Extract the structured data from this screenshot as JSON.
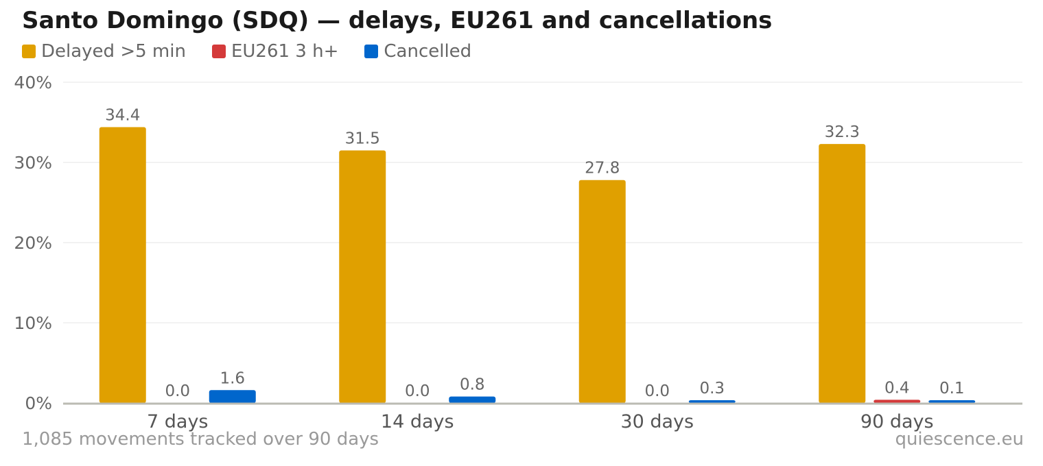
{
  "chart_data": {
    "type": "bar",
    "title": "Santo Domingo (SDQ) — delays, EU261 and cancellations",
    "categories": [
      "7 days",
      "14 days",
      "30 days",
      "90 days"
    ],
    "series": [
      {
        "name": "Delayed >5 min",
        "color": "#E0A000",
        "values": [
          34.4,
          31.5,
          27.8,
          32.3
        ],
        "labels": [
          "34.4",
          "31.5",
          "27.8",
          "32.3"
        ]
      },
      {
        "name": "EU261 3 h+",
        "color": "#D43A3A",
        "values": [
          0.0,
          0.0,
          0.0,
          0.4
        ],
        "labels": [
          "0.0",
          "0.0",
          "0.0",
          "0.4"
        ]
      },
      {
        "name": "Cancelled",
        "color": "#0066CC",
        "values": [
          1.6,
          0.8,
          0.3,
          0.1
        ],
        "labels": [
          "1.6",
          "0.8",
          "0.3",
          "0.1"
        ]
      }
    ],
    "ylim": [
      0,
      40
    ],
    "yticks": [
      0,
      10,
      20,
      30,
      40
    ],
    "ytick_labels": [
      "0%",
      "10%",
      "20%",
      "30%",
      "40%"
    ],
    "grid": true,
    "legend_position": "top-left"
  },
  "footer": {
    "note": "1,085 movements tracked over 90 days",
    "source": "quiescence.eu"
  }
}
